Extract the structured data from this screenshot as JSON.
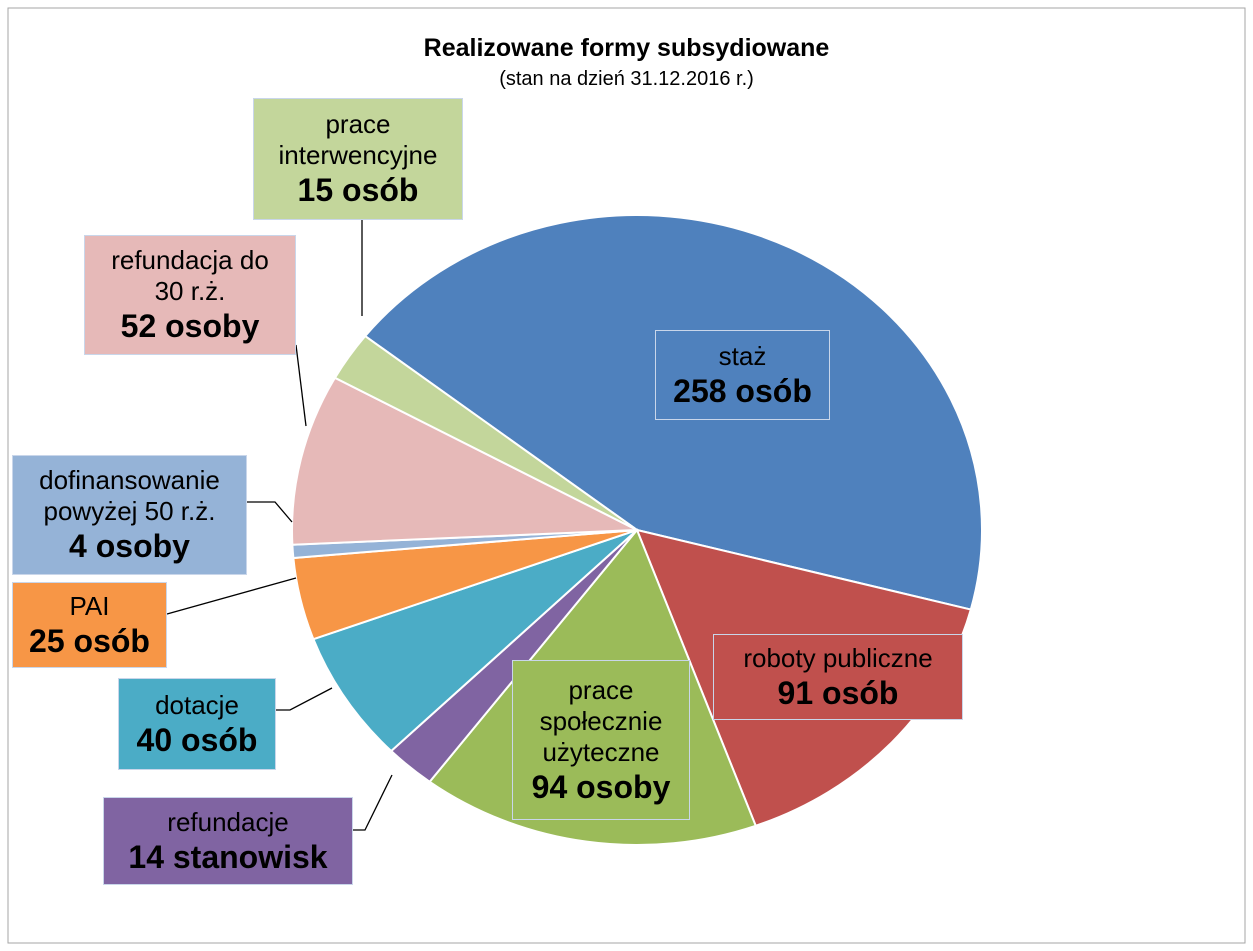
{
  "chart_data": {
    "type": "pie",
    "title": "Realizowane formy subsydiowane",
    "subtitle": "(stan na dzień 31.12.2016 r.)",
    "categories": [
      "staż",
      "roboty publiczne",
      "prace społecznie użyteczne",
      "refundacje",
      "dotacje",
      "PAI",
      "dofinansowanie powyżej 50 r.ż.",
      "refundacja do 30 r.ż.",
      "prace interwencyjne"
    ],
    "values": [
      258,
      91,
      94,
      14,
      40,
      25,
      4,
      52,
      15
    ],
    "value_labels": [
      "258 osób",
      "91 osób",
      "94 osoby",
      "14 stanowisk",
      "40 osób",
      "25 osób",
      "4 osoby",
      "52 osoby",
      "15 osób"
    ],
    "colors": [
      "#4f81bd",
      "#c0504d",
      "#9bbb59",
      "#8064a2",
      "#4bacc6",
      "#f79646",
      "#95b3d7",
      "#e6b9b8",
      "#c3d69b"
    ]
  }
}
